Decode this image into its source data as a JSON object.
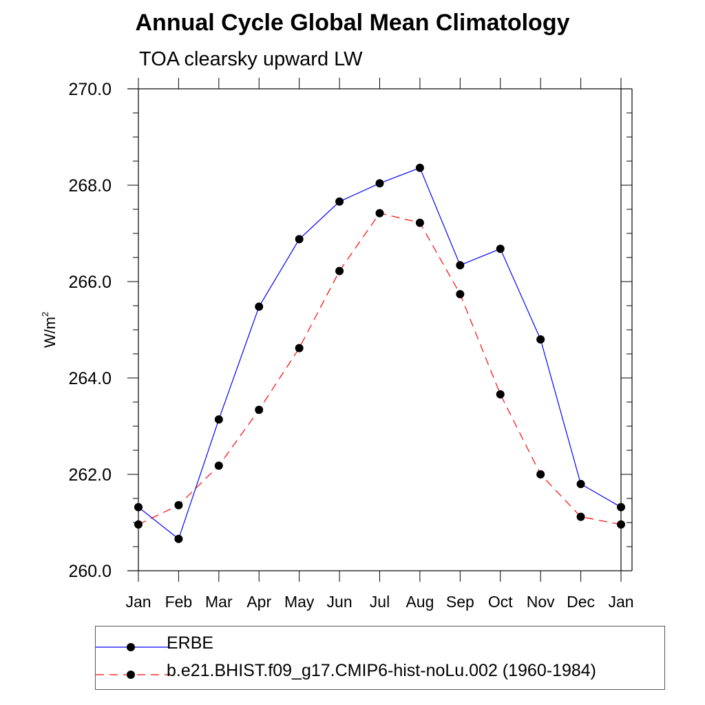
{
  "chart_data": {
    "type": "line",
    "title": "Annual Cycle Global Mean Climatology",
    "subtitle": "TOA clearsky upward LW",
    "ylabel": "W/m",
    "ylabel_superscript": "2",
    "xlabel": "",
    "ylim": [
      260.0,
      270.0
    ],
    "yticks": [
      260.0,
      262.0,
      264.0,
      266.0,
      268.0,
      270.0
    ],
    "ytick_labels": [
      "260.0",
      "262.0",
      "264.0",
      "266.0",
      "268.0",
      "270.0"
    ],
    "categories": [
      "Jan",
      "Feb",
      "Mar",
      "Apr",
      "May",
      "Jun",
      "Jul",
      "Aug",
      "Sep",
      "Oct",
      "Nov",
      "Dec",
      "Jan"
    ],
    "series": [
      {
        "name": "ERBE",
        "color": "#0000ff",
        "style": "solid",
        "values": [
          261.32,
          260.66,
          263.14,
          265.48,
          266.88,
          267.66,
          268.04,
          268.36,
          266.34,
          266.68,
          264.8,
          261.8,
          261.32
        ]
      },
      {
        "name": "b.e21.BHIST.f09_g17.CMIP6-hist-noLu.002 (1960-1984)",
        "color": "#ff0000",
        "style": "dashed",
        "values": [
          260.96,
          261.36,
          262.18,
          263.34,
          264.62,
          266.22,
          267.42,
          267.22,
          265.74,
          263.66,
          262.0,
          261.12,
          260.96
        ]
      }
    ],
    "legend": {
      "placement": "bottom",
      "entries": [
        "ERBE",
        "b.e21.BHIST.f09_g17.CMIP6-hist-noLu.002 (1960-1984)"
      ]
    },
    "grid": false
  }
}
